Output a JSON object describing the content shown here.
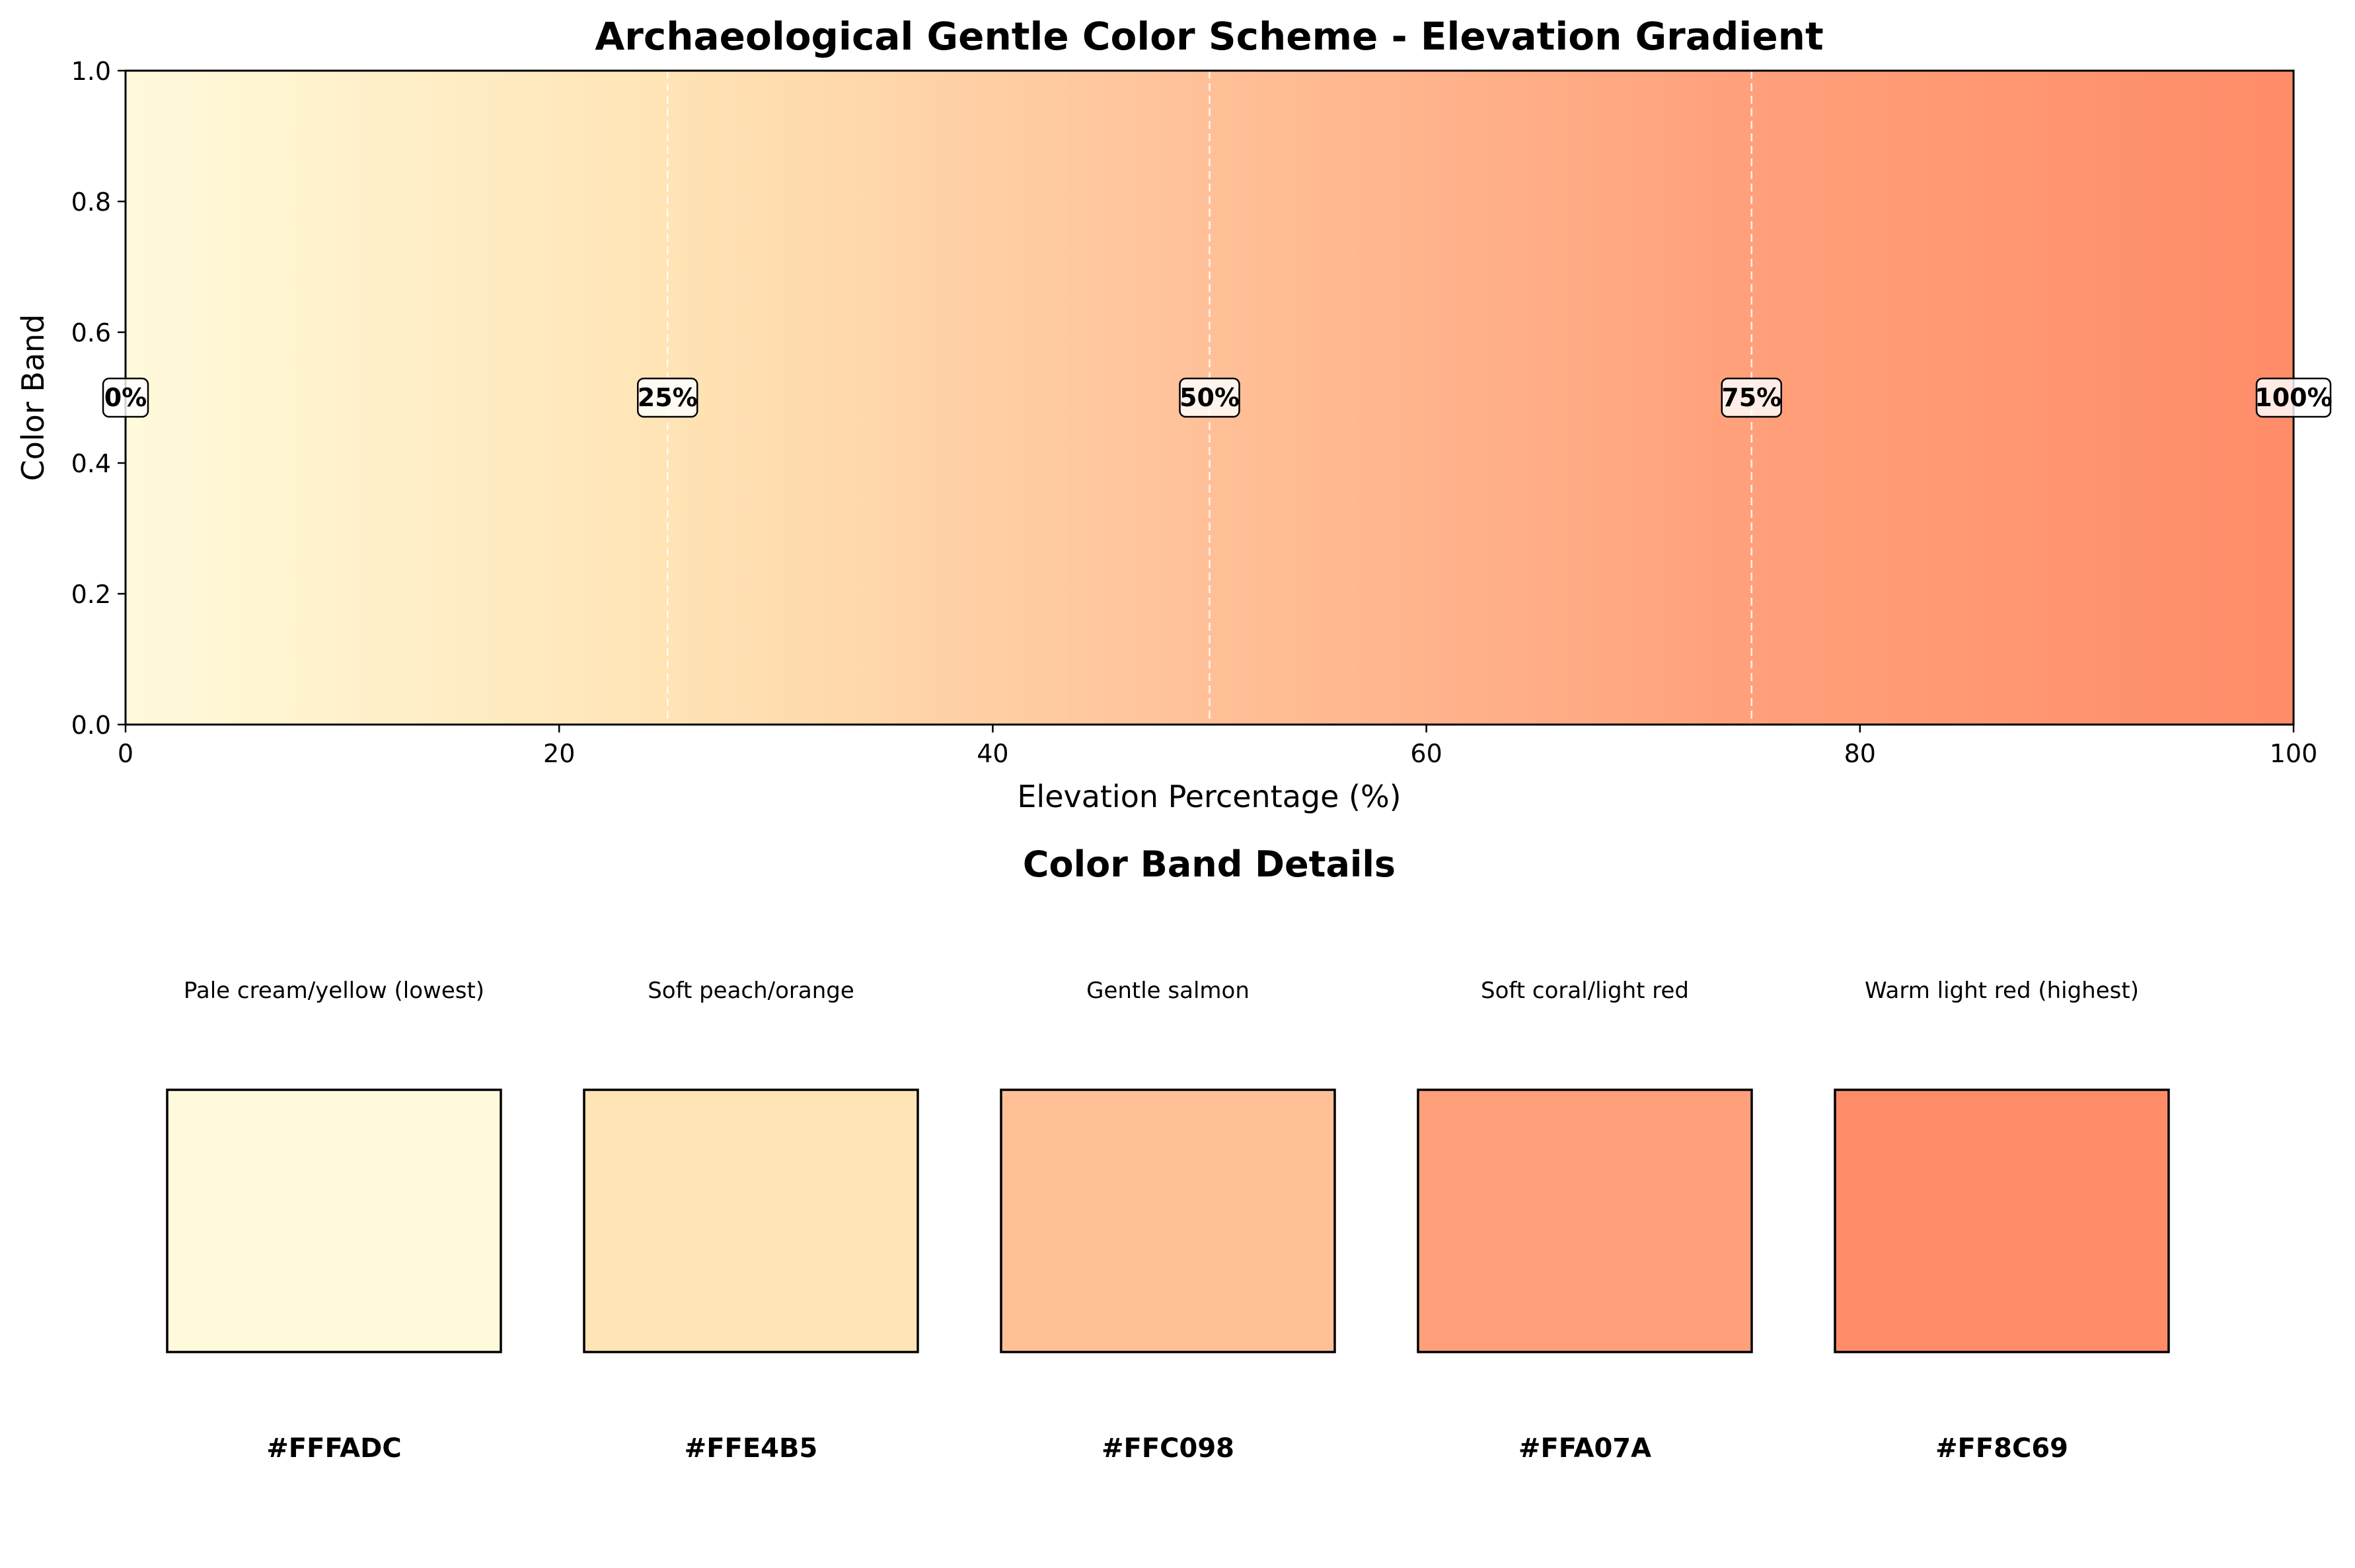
{
  "chart_data": {
    "type": "heatmap",
    "title": "Archaeological Gentle Color Scheme - Elevation Gradient",
    "xlabel": "Elevation Percentage (%)",
    "ylabel": "Color Band",
    "xlim": [
      0,
      100
    ],
    "ylim": [
      0,
      1
    ],
    "xticks": [
      "0",
      "20",
      "40",
      "60",
      "80",
      "100"
    ],
    "yticks": [
      "0.0",
      "0.2",
      "0.4",
      "0.6",
      "0.8",
      "1.0"
    ],
    "gradient_stops": [
      {
        "position": 0,
        "color": "#FFFADC"
      },
      {
        "position": 25,
        "color": "#FFE4B5"
      },
      {
        "position": 50,
        "color": "#FFC098"
      },
      {
        "position": 75,
        "color": "#FFA07A"
      },
      {
        "position": 100,
        "color": "#FF8C69"
      }
    ],
    "reference_lines": [
      25,
      50,
      75
    ],
    "annotations": [
      {
        "x": 0,
        "y": 0.5,
        "label": "0%"
      },
      {
        "x": 25,
        "y": 0.5,
        "label": "25%"
      },
      {
        "x": 50,
        "y": 0.5,
        "label": "50%"
      },
      {
        "x": 75,
        "y": 0.5,
        "label": "75%"
      },
      {
        "x": 100,
        "y": 0.5,
        "label": "100%"
      }
    ],
    "grid": false
  },
  "details": {
    "title": "Color Band Details",
    "bands": [
      {
        "description": "Pale cream/yellow (lowest)",
        "hex": "#FFFADC",
        "color": "#FFFADC"
      },
      {
        "description": "Soft peach/orange",
        "hex": "#FFE4B5",
        "color": "#FFE4B5"
      },
      {
        "description": "Gentle salmon",
        "hex": "#FFC098",
        "color": "#FFC098"
      },
      {
        "description": "Soft coral/light red",
        "hex": "#FFA07A",
        "color": "#FFA07A"
      },
      {
        "description": "Warm light red (highest)",
        "hex": "#FF8C69",
        "color": "#FF8C69"
      }
    ]
  }
}
